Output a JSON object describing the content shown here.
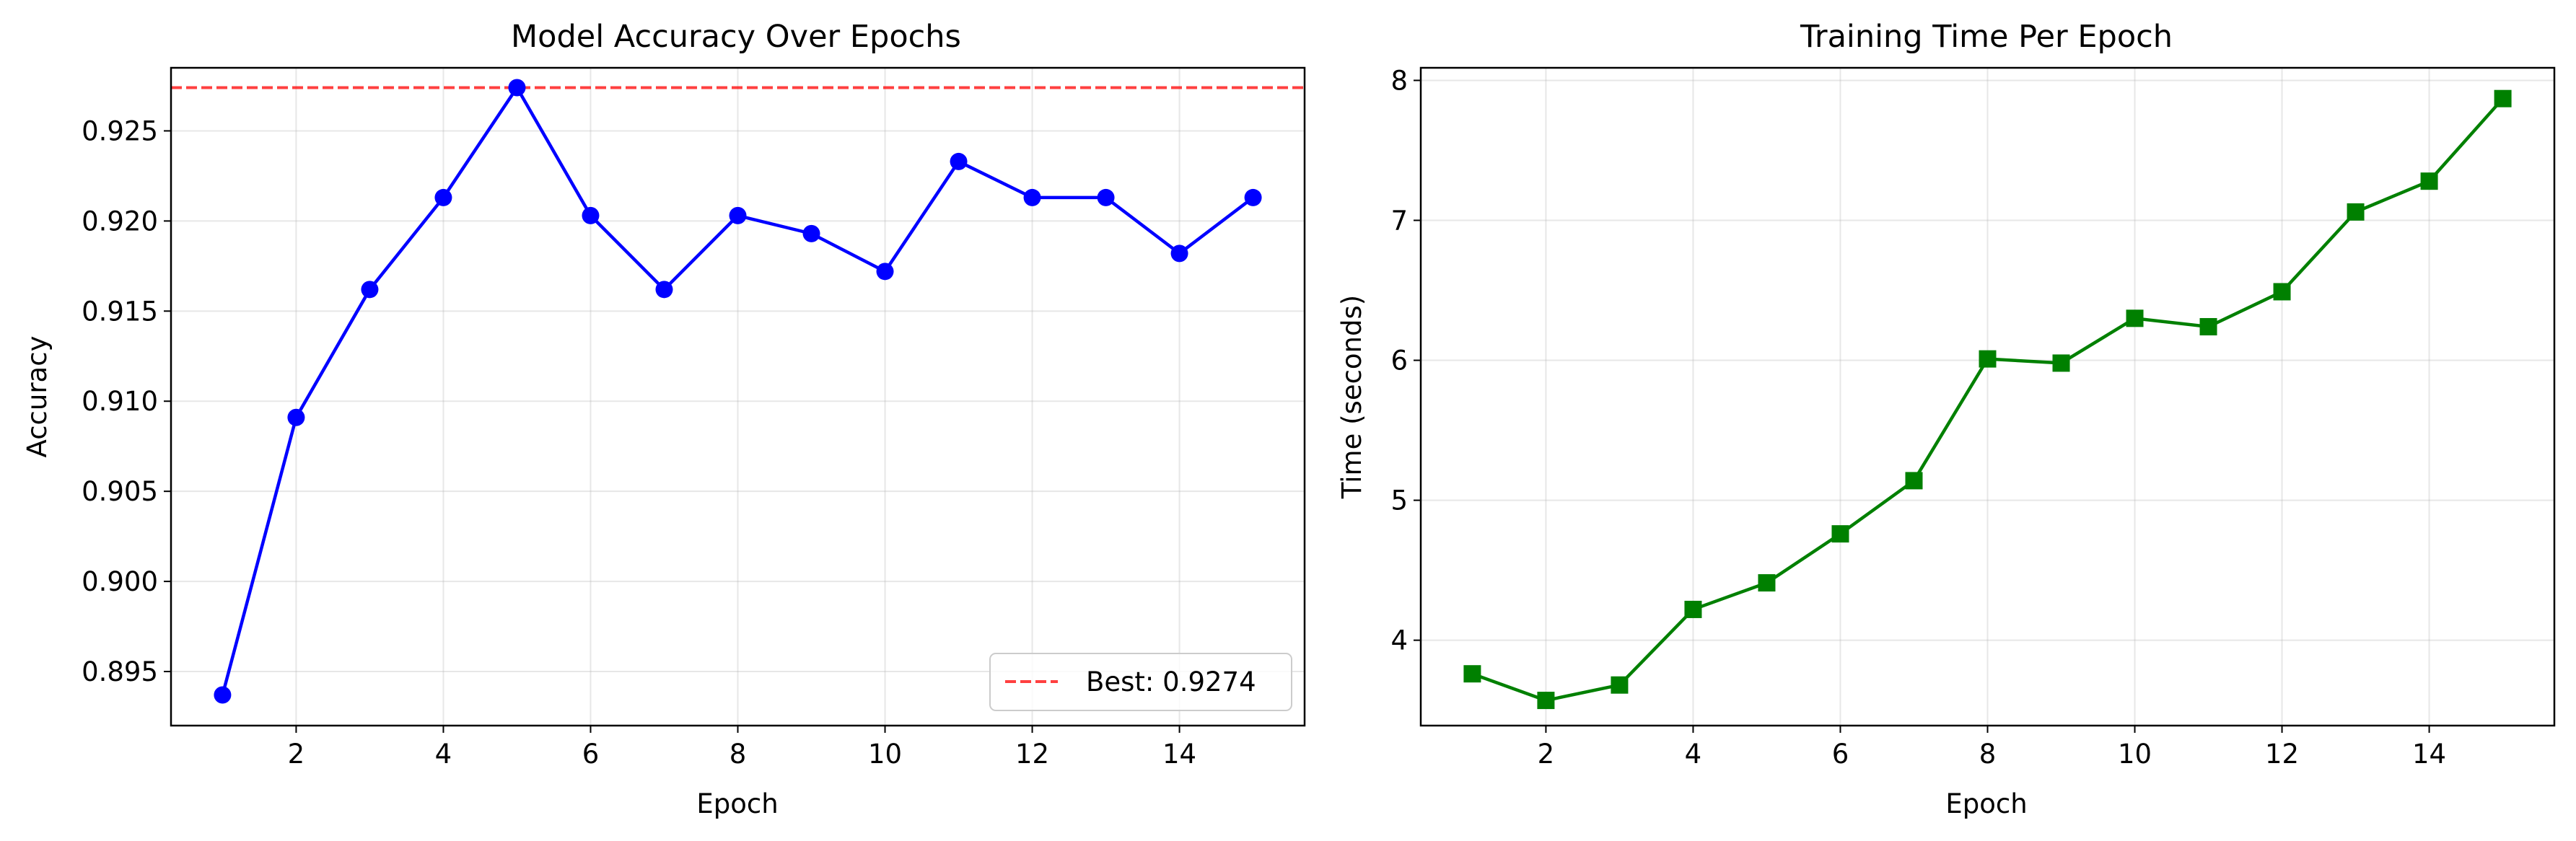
{
  "chart_data": [
    {
      "type": "line",
      "title": "Model Accuracy Over Epochs",
      "xlabel": "Epoch",
      "ylabel": "Accuracy",
      "xlim": [
        0.3,
        15.7
      ],
      "ylim": [
        0.892,
        0.9285
      ],
      "xticks": [
        2,
        4,
        6,
        8,
        10,
        12,
        14
      ],
      "yticks": [
        0.895,
        0.9,
        0.905,
        0.91,
        0.915,
        0.92,
        0.925
      ],
      "ytick_labels": [
        "0.895",
        "0.900",
        "0.905",
        "0.910",
        "0.915",
        "0.920",
        "0.925"
      ],
      "grid": true,
      "series": [
        {
          "name": "Accuracy",
          "color": "#0000ff",
          "marker": "circle",
          "x": [
            1,
            2,
            3,
            4,
            5,
            6,
            7,
            8,
            9,
            10,
            11,
            12,
            13,
            14,
            15
          ],
          "values": [
            0.8937,
            0.9091,
            0.9162,
            0.9213,
            0.9274,
            0.9203,
            0.9162,
            0.9203,
            0.9193,
            0.9172,
            0.9233,
            0.9213,
            0.9213,
            0.9182,
            0.9213
          ]
        }
      ],
      "reference_line": {
        "label": "Best: 0.9274",
        "value": 0.9274,
        "color": "#ff0000",
        "style": "dashed"
      },
      "legend": {
        "position": "lower-right",
        "entries": [
          "Best: 0.9274"
        ]
      }
    },
    {
      "type": "line",
      "title": "Training Time Per Epoch",
      "xlabel": "Epoch",
      "ylabel": "Time (seconds)",
      "xlim": [
        0.3,
        15.7
      ],
      "ylim": [
        3.39,
        8.09
      ],
      "xticks": [
        2,
        4,
        6,
        8,
        10,
        12,
        14
      ],
      "yticks": [
        4,
        5,
        6,
        7,
        8
      ],
      "ytick_labels": [
        "4",
        "5",
        "6",
        "7",
        "8"
      ],
      "grid": true,
      "series": [
        {
          "name": "Time",
          "color": "#008000",
          "marker": "square",
          "x": [
            1,
            2,
            3,
            4,
            5,
            6,
            7,
            8,
            9,
            10,
            11,
            12,
            13,
            14,
            15
          ],
          "values": [
            3.76,
            3.57,
            3.68,
            4.22,
            4.41,
            4.76,
            5.14,
            6.01,
            5.98,
            6.3,
            6.24,
            6.49,
            7.06,
            7.28,
            7.87
          ]
        }
      ]
    }
  ]
}
